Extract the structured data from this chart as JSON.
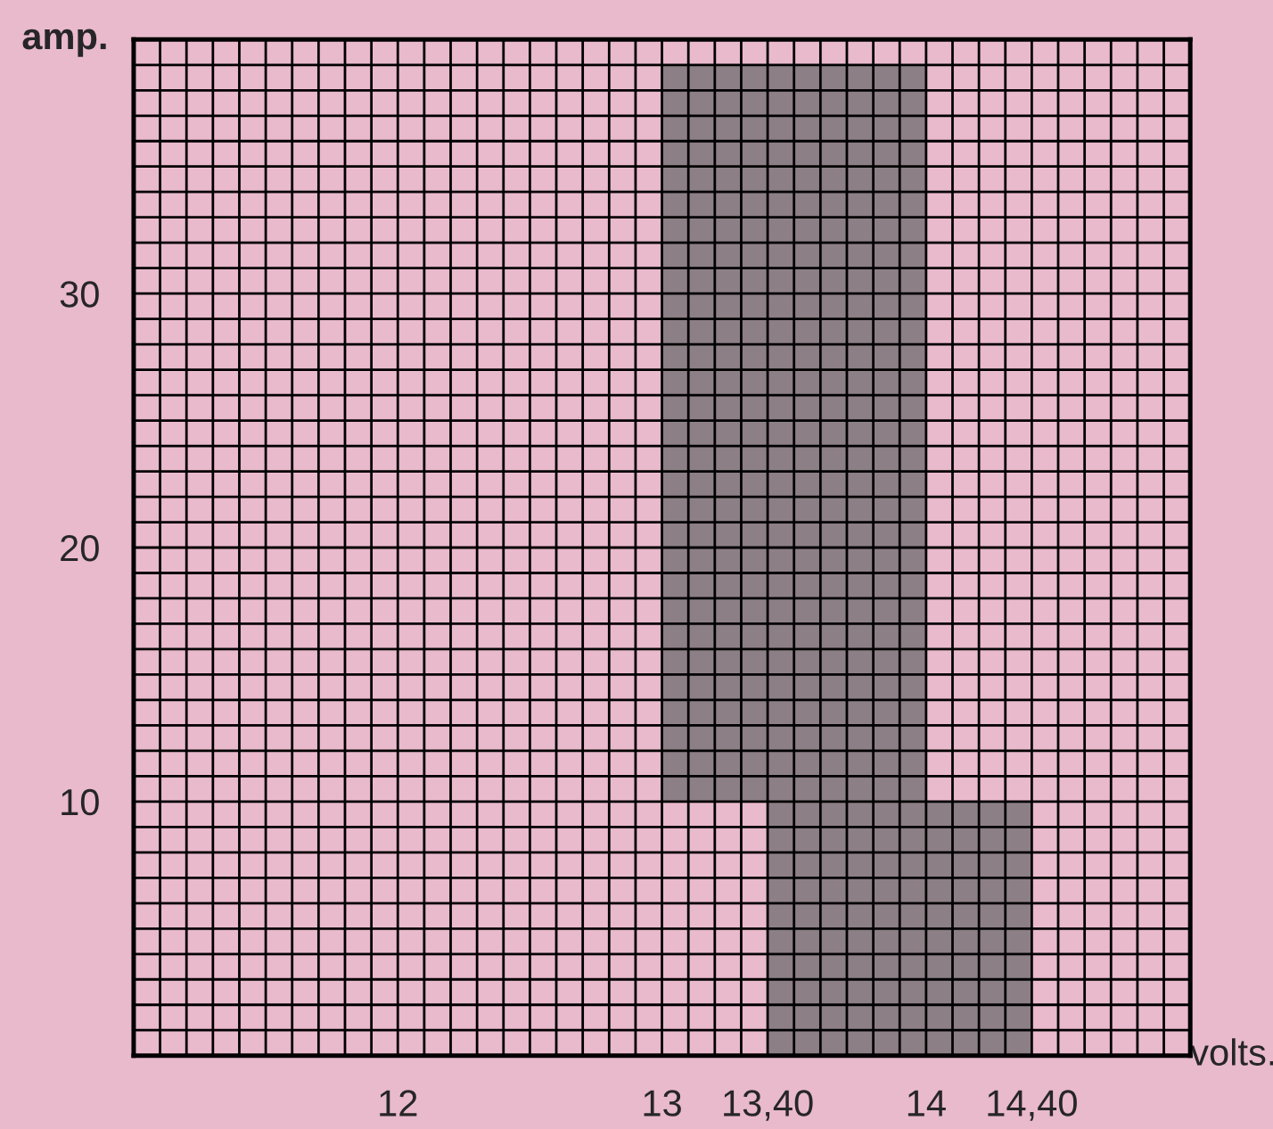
{
  "chart_data": {
    "type": "bar",
    "xlabel": "volts.",
    "ylabel": "amp.",
    "x": [
      13.5,
      13.9
    ],
    "values": [
      29,
      10
    ],
    "base": [
      10,
      0
    ],
    "color": "#7d7479",
    "xlim": [
      11,
      15
    ],
    "ylim": [
      0,
      40
    ],
    "xticks": [
      12,
      13,
      {
        "value": 13.4,
        "label": "13,40"
      },
      14,
      {
        "value": 14.4,
        "label": "14,40"
      }
    ],
    "yticks": [
      10,
      20,
      30
    ],
    "grid": true
  }
}
